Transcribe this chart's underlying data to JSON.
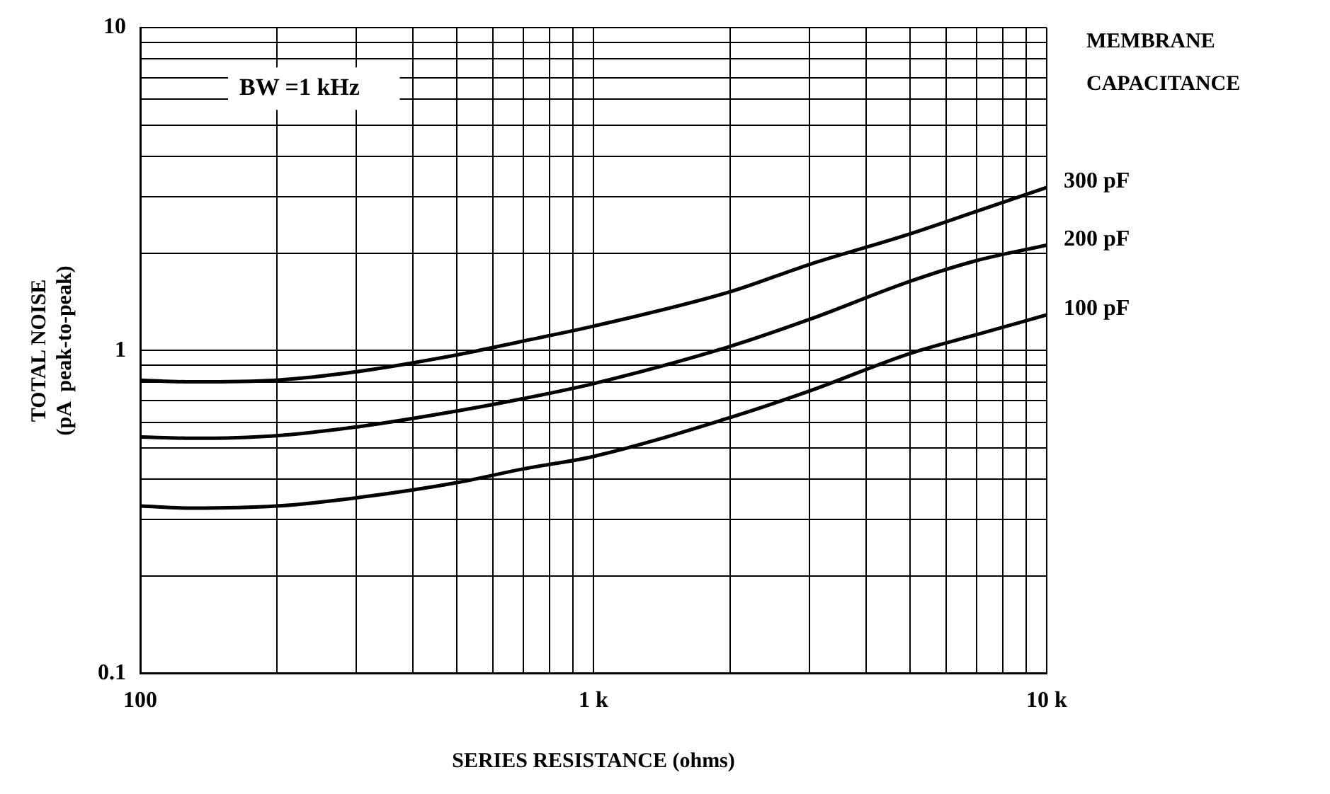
{
  "chart_data": {
    "type": "line",
    "xlabel": "SERIES RESISTANCE (ohms)",
    "ylabel": "TOTAL NOISE\n(pA  peak-to-peak)",
    "legend_title": "MEMBRANE CAPACITANCE",
    "annotations": [
      "BW =1 kHz"
    ],
    "log": "xy",
    "grid": true,
    "xlim": [
      100,
      10000
    ],
    "ylim": [
      0.1,
      10
    ],
    "xticks": [
      100,
      {
        "value": 200,
        "label": null
      },
      {
        "value": 300,
        "label": null
      },
      {
        "value": 400,
        "label": null
      },
      {
        "value": 500,
        "label": null
      },
      {
        "value": 600,
        "label": null
      },
      {
        "value": 700,
        "label": null
      },
      {
        "value": 800,
        "label": null
      },
      {
        "value": 900,
        "label": null
      },
      {
        "value": 1000,
        "label": "1 k"
      },
      {
        "value": 2000,
        "label": null
      },
      {
        "value": 3000,
        "label": null
      },
      {
        "value": 4000,
        "label": null
      },
      {
        "value": 5000,
        "label": null
      },
      {
        "value": 6000,
        "label": null
      },
      {
        "value": 7000,
        "label": null
      },
      {
        "value": 8000,
        "label": null
      },
      {
        "value": 9000,
        "label": null
      },
      {
        "value": 10000,
        "label": "10 k"
      }
    ],
    "yticks": [
      0.1,
      {
        "value": 0.2,
        "label": null
      },
      {
        "value": 0.3,
        "label": null
      },
      {
        "value": 0.4,
        "label": null
      },
      {
        "value": 0.5,
        "label": null
      },
      {
        "value": 0.6,
        "label": null
      },
      {
        "value": 0.7,
        "label": null
      },
      {
        "value": 0.8,
        "label": null
      },
      {
        "value": 0.9,
        "label": null
      },
      1,
      {
        "value": 2,
        "label": null
      },
      {
        "value": 3,
        "label": null
      },
      {
        "value": 4,
        "label": null
      },
      {
        "value": 5,
        "label": null
      },
      {
        "value": 6,
        "label": null
      },
      {
        "value": 7,
        "label": null
      },
      {
        "value": 8,
        "label": null
      },
      {
        "value": 9,
        "label": null
      },
      10
    ],
    "x": [
      100,
      130,
      200,
      300,
      500,
      700,
      1000,
      2000,
      3000,
      5000,
      7000,
      10000
    ],
    "series": [
      {
        "name": "300 pF",
        "color": "#000000",
        "values": [
          0.81,
          0.8,
          0.81,
          0.86,
          0.97,
          1.07,
          1.19,
          1.52,
          1.85,
          2.3,
          2.7,
          3.2
        ]
      },
      {
        "name": "200 pF",
        "color": "#000000",
        "values": [
          0.54,
          0.535,
          0.545,
          0.58,
          0.65,
          0.71,
          0.79,
          1.03,
          1.25,
          1.64,
          1.9,
          2.12
        ]
      },
      {
        "name": "100 pF",
        "color": "#000000",
        "values": [
          0.33,
          0.325,
          0.33,
          0.35,
          0.39,
          0.43,
          0.47,
          0.62,
          0.75,
          0.98,
          1.12,
          1.29
        ]
      }
    ]
  }
}
